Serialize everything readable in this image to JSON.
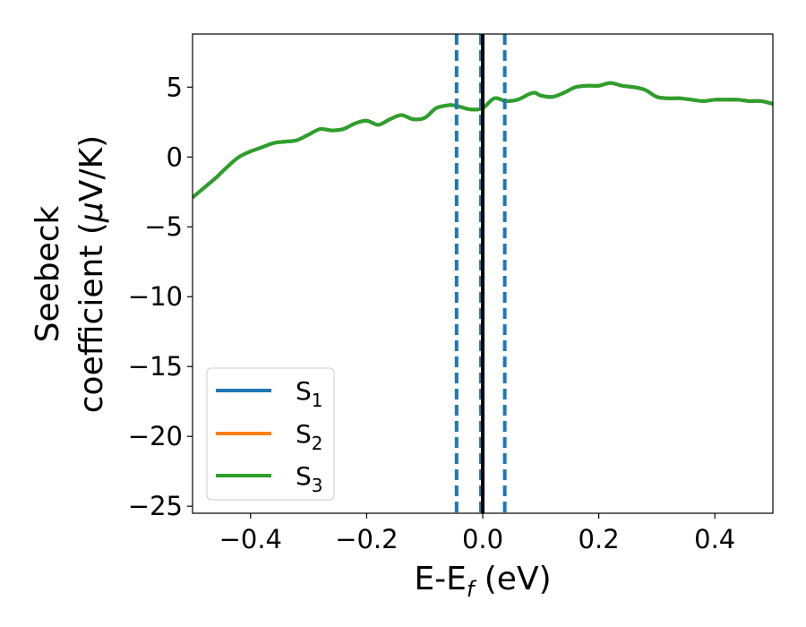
{
  "chart_data": {
    "type": "line",
    "xlabel": {
      "main": "E-E",
      "sub": "f",
      "tail": " (eV)"
    },
    "ylabel": {
      "line1": "Seebeck",
      "line2_text": "coefficient  (",
      "line2_mu": "μ",
      "line2_tail": "V/K)"
    },
    "xlim": [
      -0.5,
      0.5
    ],
    "ylim": [
      -25.5,
      8.8
    ],
    "xticks": [
      -0.4,
      -0.2,
      0.0,
      0.2,
      0.4
    ],
    "xtick_labels": [
      "−0.4",
      "−0.2",
      "0.0",
      "0.2",
      "0.4"
    ],
    "yticks": [
      5,
      0,
      -5,
      -10,
      -15,
      -20,
      -25
    ],
    "ytick_labels": [
      "5",
      "0",
      "−5",
      "−10",
      "−15",
      "−20",
      "−25"
    ],
    "grid": false,
    "legend_position": "lower-left",
    "series": [
      {
        "name": "S",
        "sub": "1",
        "color": "#1f77b4"
      },
      {
        "name": "S",
        "sub": "2",
        "color": "#ff7f0e"
      },
      {
        "name": "S",
        "sub": "3",
        "color": "#2ca02c"
      }
    ],
    "curve": {
      "x": [
        -0.5,
        -0.48,
        -0.46,
        -0.44,
        -0.42,
        -0.4,
        -0.38,
        -0.36,
        -0.34,
        -0.32,
        -0.3,
        -0.28,
        -0.26,
        -0.24,
        -0.22,
        -0.2,
        -0.18,
        -0.16,
        -0.14,
        -0.12,
        -0.1,
        -0.08,
        -0.06,
        -0.05,
        -0.04,
        -0.02,
        0.0,
        0.02,
        0.04,
        0.06,
        0.08,
        0.09,
        0.1,
        0.12,
        0.14,
        0.16,
        0.18,
        0.2,
        0.22,
        0.24,
        0.26,
        0.28,
        0.3,
        0.32,
        0.34,
        0.36,
        0.38,
        0.4,
        0.42,
        0.44,
        0.46,
        0.48,
        0.5
      ],
      "y": [
        -2.9,
        -2.2,
        -1.5,
        -0.7,
        0.0,
        0.4,
        0.7,
        1.0,
        1.1,
        1.2,
        1.6,
        2.0,
        1.9,
        2.0,
        2.4,
        2.6,
        2.3,
        2.7,
        3.0,
        2.7,
        2.8,
        3.5,
        3.7,
        3.7,
        3.6,
        3.4,
        3.5,
        4.2,
        4.0,
        4.1,
        4.5,
        4.6,
        4.4,
        4.3,
        4.6,
        5.0,
        5.1,
        5.1,
        5.3,
        5.1,
        5.0,
        4.8,
        4.3,
        4.2,
        4.2,
        4.1,
        4.0,
        4.1,
        4.1,
        4.1,
        4.0,
        4.0,
        3.8
      ]
    },
    "vlines": [
      {
        "x": -0.045,
        "style": "dashed",
        "color": "#1f77b4"
      },
      {
        "x": 0.0,
        "style": "solid",
        "color": "#000000"
      },
      {
        "x": -0.003,
        "style": "dashed",
        "color": "#1f77b4"
      },
      {
        "x": 0.038,
        "style": "dashed",
        "color": "#1f77b4"
      }
    ]
  }
}
